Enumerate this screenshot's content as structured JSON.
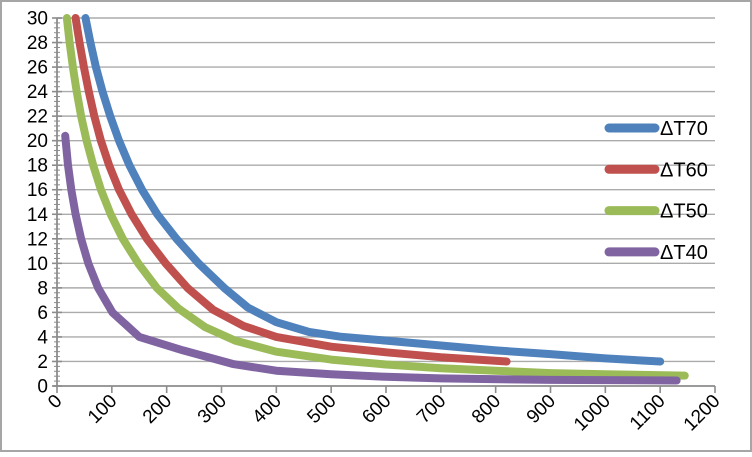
{
  "chart_data": {
    "type": "line",
    "title": "",
    "xlabel": "",
    "ylabel": "",
    "xlim": [
      0,
      1200
    ],
    "ylim": [
      0,
      30
    ],
    "grid": "horizontal-major",
    "legend_position": "inside-right",
    "x_ticks": [
      0,
      100,
      200,
      300,
      400,
      500,
      600,
      700,
      800,
      900,
      1000,
      1100,
      1200
    ],
    "x_tick_labels": [
      "0",
      "100",
      "200",
      "300",
      "400",
      "500",
      "600",
      "700",
      "800",
      "900",
      "1000",
      "1100",
      "1200"
    ],
    "y_ticks": [
      0,
      2,
      4,
      6,
      8,
      10,
      12,
      14,
      16,
      18,
      20,
      22,
      24,
      26,
      28,
      30
    ],
    "y_tick_labels": [
      "0",
      "2",
      "4",
      "6",
      "8",
      "10",
      "12",
      "14",
      "16",
      "18",
      "20",
      "22",
      "24",
      "26",
      "28",
      "30"
    ],
    "y_minor_tick_step": 0.4,
    "series": [
      {
        "name": "ΔT70",
        "color": "#4F81BD",
        "points": [
          [
            52,
            30
          ],
          [
            61,
            28
          ],
          [
            71,
            26
          ],
          [
            83,
            24
          ],
          [
            97,
            22
          ],
          [
            113,
            20
          ],
          [
            132,
            18
          ],
          [
            155,
            16
          ],
          [
            183,
            14
          ],
          [
            218,
            12
          ],
          [
            258,
            10
          ],
          [
            305,
            8
          ],
          [
            348,
            6.4
          ],
          [
            400,
            5.2
          ],
          [
            460,
            4.4
          ],
          [
            520,
            4.0
          ],
          [
            600,
            3.7
          ],
          [
            700,
            3.3
          ],
          [
            800,
            2.9
          ],
          [
            900,
            2.6
          ],
          [
            1000,
            2.25
          ],
          [
            1100,
            2.0
          ]
        ]
      },
      {
        "name": "ΔT60",
        "color": "#C0504D",
        "points": [
          [
            34,
            30
          ],
          [
            41,
            28
          ],
          [
            49,
            26
          ],
          [
            58,
            24
          ],
          [
            68,
            22
          ],
          [
            80,
            20
          ],
          [
            95,
            18
          ],
          [
            113,
            16
          ],
          [
            136,
            14
          ],
          [
            164,
            12
          ],
          [
            198,
            10
          ],
          [
            238,
            8
          ],
          [
            285,
            6.2
          ],
          [
            340,
            4.9
          ],
          [
            400,
            4.0
          ],
          [
            500,
            3.2
          ],
          [
            600,
            2.75
          ],
          [
            700,
            2.35
          ],
          [
            820,
            2.0
          ]
        ]
      },
      {
        "name": "ΔT50",
        "color": "#9BBB59",
        "points": [
          [
            18,
            30
          ],
          [
            23,
            28
          ],
          [
            29,
            26
          ],
          [
            36,
            24
          ],
          [
            44,
            22
          ],
          [
            54,
            20
          ],
          [
            66,
            18
          ],
          [
            80,
            16
          ],
          [
            98,
            14
          ],
          [
            120,
            12
          ],
          [
            148,
            10
          ],
          [
            182,
            8
          ],
          [
            222,
            6.3
          ],
          [
            270,
            4.8
          ],
          [
            325,
            3.7
          ],
          [
            400,
            2.8
          ],
          [
            500,
            2.15
          ],
          [
            600,
            1.75
          ],
          [
            700,
            1.45
          ],
          [
            800,
            1.25
          ],
          [
            900,
            1.05
          ],
          [
            1000,
            0.95
          ],
          [
            1145,
            0.85
          ]
        ]
      },
      {
        "name": "ΔT40",
        "color": "#8064A2",
        "points": [
          [
            15,
            20.4
          ],
          [
            20,
            18
          ],
          [
            26,
            16
          ],
          [
            34,
            14
          ],
          [
            44,
            12
          ],
          [
            57,
            10
          ],
          [
            75,
            8
          ],
          [
            101,
            6
          ],
          [
            150,
            4
          ],
          [
            230,
            2.9
          ],
          [
            320,
            1.8
          ],
          [
            400,
            1.25
          ],
          [
            500,
            0.95
          ],
          [
            600,
            0.75
          ],
          [
            700,
            0.62
          ],
          [
            900,
            0.5
          ],
          [
            1130,
            0.45
          ]
        ]
      }
    ]
  },
  "colors": {
    "background": "#FFFFFF",
    "frame_border": "#A6A6A6",
    "gridline": "#ABABAB",
    "axis": "#8C8C8C",
    "text": "#000000"
  }
}
